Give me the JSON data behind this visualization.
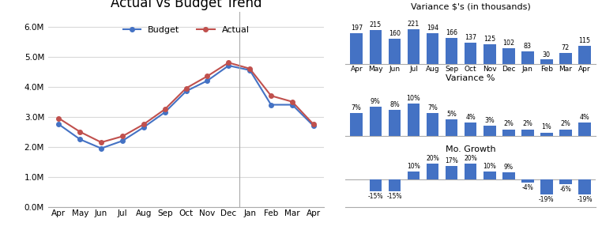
{
  "line_months": [
    "Apr",
    "May",
    "Jun",
    "Jul",
    "Aug",
    "Sep",
    "Oct",
    "Nov",
    "Dec",
    "Jan",
    "Feb",
    "Mar",
    "Apr"
  ],
  "budget_values": [
    2.75,
    2.25,
    1.95,
    2.2,
    2.65,
    3.15,
    3.85,
    4.2,
    4.7,
    4.55,
    3.4,
    3.4,
    2.7
  ],
  "actual_values": [
    2.95,
    2.5,
    2.15,
    2.35,
    2.75,
    3.25,
    3.95,
    4.35,
    4.8,
    4.6,
    3.7,
    3.5,
    2.75
  ],
  "bar_months": [
    "Apr",
    "May",
    "Jun",
    "Jul",
    "Aug",
    "Sep",
    "Oct",
    "Nov",
    "Dec",
    "Jan",
    "Feb",
    "Mar",
    "Apr"
  ],
  "variance_dollars": [
    197,
    215,
    160,
    221,
    194,
    166,
    137,
    125,
    102,
    83,
    30,
    72,
    115
  ],
  "variance_pct": [
    7,
    9,
    8,
    10,
    7,
    5,
    4,
    3,
    2,
    2,
    1,
    2,
    4
  ],
  "mo_growth": [
    0,
    -15,
    -15,
    10,
    20,
    17,
    20,
    10,
    9,
    -4,
    -19,
    -6,
    -19
  ],
  "line_color_budget": "#4472C4",
  "line_color_actual": "#C0504D",
  "bar_color": "#4472C4",
  "bg_color": "#FFFFFF",
  "grid_color": "#D9D9D9",
  "title_line": "Actual vs Budget Trend",
  "title_var_dollars": "Variance $'s (in thousands)",
  "title_var_pct": "Variance %",
  "title_mo_growth": "Mo. Growth",
  "line_ylabel_ticks": [
    "0.0M",
    "1.0M",
    "2.0M",
    "3.0M",
    "4.0M",
    "5.0M",
    "6.0M"
  ],
  "line_ylim": [
    0,
    6.5
  ],
  "line_yticks": [
    0,
    1,
    2,
    3,
    4,
    5,
    6
  ]
}
